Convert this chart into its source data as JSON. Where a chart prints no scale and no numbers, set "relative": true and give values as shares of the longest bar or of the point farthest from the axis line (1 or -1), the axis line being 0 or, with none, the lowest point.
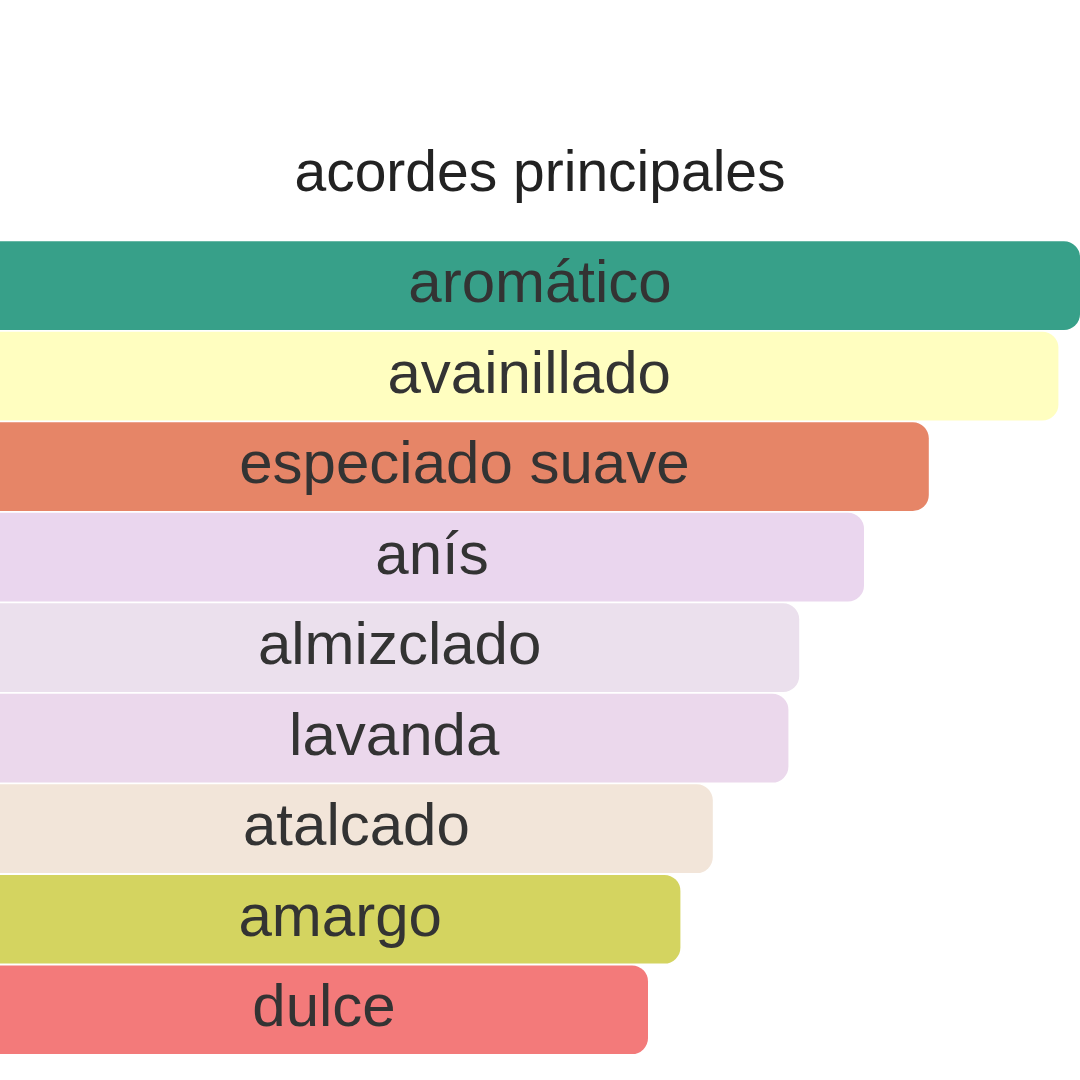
{
  "chart_data": {
    "type": "bar",
    "orientation": "horizontal",
    "relative": true,
    "title": "acordes principales",
    "categories": [
      "aromático",
      "avainillado",
      "especiado suave",
      "anís",
      "almizclado",
      "lavanda",
      "atalcado",
      "amargo",
      "dulce"
    ],
    "values": [
      1,
      0.98,
      0.86,
      0.8,
      0.74,
      0.73,
      0.66,
      0.63,
      0.6
    ],
    "colors": [
      "#37a089",
      "#fffec0",
      "#e68567",
      "#ead6ee",
      "#ebe0ed",
      "#ebd8ec",
      "#f2e5d9",
      "#d4d460",
      "#f37a7a"
    ],
    "legend": false
  }
}
